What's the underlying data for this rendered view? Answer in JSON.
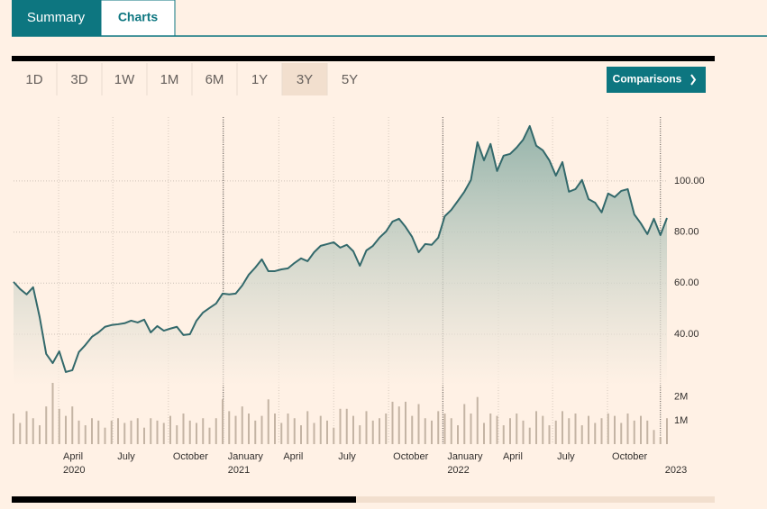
{
  "ui": {
    "tabs": [
      "Summary",
      "Charts"
    ],
    "periods": [
      "1D",
      "3D",
      "1W",
      "1M",
      "6M",
      "1Y",
      "3Y",
      "5Y"
    ],
    "selected_period": "3Y",
    "comparisons": "Comparisons"
  },
  "chart_data": [
    {
      "type": "line",
      "color": "#33696b",
      "grid": true,
      "xlim": [
        0,
        100
      ],
      "xticks": [
        {
          "value": 6.9,
          "label": "April"
        },
        {
          "value": 15.2,
          "label": "July"
        },
        {
          "value": 23.7,
          "label": "October"
        },
        {
          "value": 32.1,
          "label": "January"
        },
        {
          "value": 40.6,
          "label": "April"
        },
        {
          "value": 49.0,
          "label": "July"
        },
        {
          "value": 57.4,
          "label": "October"
        },
        {
          "value": 65.7,
          "label": "January"
        },
        {
          "value": 74.2,
          "label": "April"
        },
        {
          "value": 82.5,
          "label": "July"
        },
        {
          "value": 90.9,
          "label": "October"
        }
      ],
      "year_labels": [
        {
          "value": 6.9,
          "label": "2020"
        },
        {
          "value": 32.1,
          "label": "2021"
        },
        {
          "value": 65.7,
          "label": "2022"
        },
        {
          "value": 99.0,
          "label": "2023"
        }
      ],
      "ylim": [
        20,
        125
      ],
      "yticks": [
        {
          "value": 40,
          "label": "40.00"
        },
        {
          "value": 60,
          "label": "60.00"
        },
        {
          "value": 80,
          "label": "80.00"
        },
        {
          "value": 100,
          "label": "100.00"
        }
      ],
      "values": [
        60.5,
        57.7,
        55.6,
        58.4,
        46.7,
        32.3,
        28.7,
        33.3,
        25.2,
        25.9,
        33.0,
        35.8,
        39.0,
        40.7,
        42.9,
        43.6,
        43.9,
        44.3,
        45.3,
        44.6,
        45.7,
        40.7,
        43.2,
        41.4,
        42.2,
        42.9,
        39.7,
        40.0,
        45.3,
        48.5,
        50.3,
        52.0,
        55.9,
        55.6,
        55.9,
        59.1,
        63.3,
        66.1,
        69.3,
        64.7,
        64.7,
        65.4,
        65.8,
        67.9,
        69.7,
        68.6,
        72.1,
        74.6,
        75.3,
        76.0,
        73.9,
        75.0,
        72.5,
        66.8,
        72.8,
        74.6,
        77.8,
        80.2,
        84.1,
        85.2,
        82.0,
        78.1,
        72.1,
        75.3,
        75.0,
        77.8,
        86.2,
        88.7,
        92.2,
        95.8,
        100.4,
        115.2,
        108.1,
        114.5,
        103.9,
        109.9,
        110.6,
        113.1,
        116.2,
        121.5,
        113.8,
        112.0,
        108.1,
        102.1,
        107.4,
        95.8,
        96.8,
        100.4,
        92.9,
        91.5,
        87.7,
        95.1,
        93.7,
        96.1,
        96.8,
        86.9,
        83.4,
        79.2,
        85.2,
        78.8,
        85.5
      ]
    },
    {
      "type": "bar",
      "color": "#c4b4a4",
      "ylim": [
        0,
        2.6
      ],
      "yticks": [
        {
          "value": 1,
          "label": "1M"
        },
        {
          "value": 2,
          "label": "2M"
        }
      ],
      "values": [
        1.3,
        0.9,
        1.4,
        1.1,
        0.8,
        1.6,
        2.6,
        1.5,
        1.2,
        1.6,
        1.0,
        0.8,
        1.1,
        1.0,
        0.7,
        1.0,
        1.1,
        0.9,
        1.0,
        1.1,
        0.7,
        1.1,
        1.0,
        0.9,
        1.2,
        0.8,
        1.3,
        1.0,
        0.9,
        1.1,
        0.7,
        1.1,
        1.9,
        1.4,
        1.2,
        1.6,
        1.3,
        1.0,
        1.2,
        1.9,
        1.3,
        0.9,
        1.3,
        1.1,
        0.8,
        1.4,
        0.9,
        1.2,
        1.0,
        0.7,
        1.5,
        1.5,
        1.2,
        0.8,
        1.4,
        1.0,
        1.1,
        1.3,
        1.8,
        1.6,
        1.8,
        1.2,
        1.7,
        1.1,
        1.0,
        1.4,
        1.3,
        1.1,
        0.8,
        1.7,
        1.3,
        2.0,
        0.9,
        1.3,
        1.2,
        0.8,
        1.1,
        1.3,
        1.0,
        0.7,
        1.4,
        1.2,
        0.8,
        1.0,
        1.4,
        1.1,
        1.3,
        0.8,
        1.2,
        0.9,
        1.1,
        1.3,
        1.2,
        0.9,
        1.3,
        1.0,
        1.2,
        1.0,
        0.6,
        0.3,
        1.1
      ]
    }
  ]
}
